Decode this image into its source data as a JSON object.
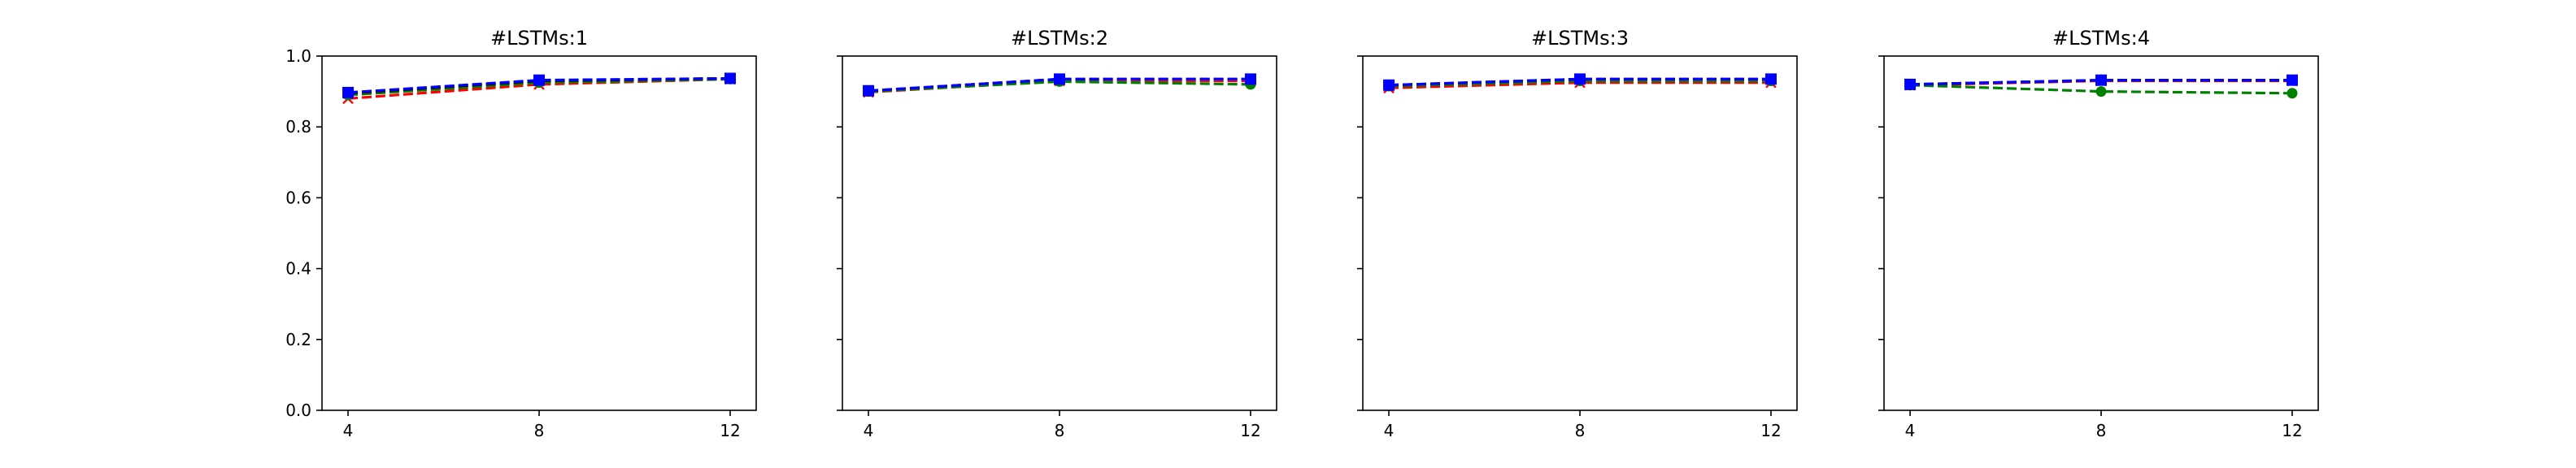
{
  "chart_data": [
    {
      "type": "line",
      "title": "#LSTMs:1",
      "x": [
        4,
        8,
        12
      ],
      "xticks": [
        "4",
        "8",
        "12"
      ],
      "yticks": [
        "0.0",
        "0.2",
        "0.4",
        "0.6",
        "0.8",
        "1.0"
      ],
      "ylim": [
        0.0,
        1.0
      ],
      "show_yticklabels": true,
      "series": [
        {
          "color": "#ff0000",
          "marker": "x",
          "linestyle": "dashed",
          "values": [
            0.88,
            0.92,
            0.935
          ]
        },
        {
          "color": "#008000",
          "marker": "o",
          "linestyle": "dashed",
          "values": [
            0.89,
            0.925,
            0.935
          ]
        },
        {
          "color": "#000000",
          "marker": "x",
          "linestyle": "dashed",
          "values": [
            0.895,
            0.93,
            0.937
          ]
        },
        {
          "color": "#0000ff",
          "marker": "s",
          "linestyle": "dashed",
          "values": [
            0.897,
            0.932,
            0.937
          ]
        }
      ]
    },
    {
      "type": "line",
      "title": "#LSTMs:2",
      "x": [
        4,
        8,
        12
      ],
      "xticks": [
        "4",
        "8",
        "12"
      ],
      "yticks": [
        "0.0",
        "0.2",
        "0.4",
        "0.6",
        "0.8",
        "1.0"
      ],
      "ylim": [
        0.0,
        1.0
      ],
      "show_yticklabels": false,
      "series": [
        {
          "color": "#ff0000",
          "marker": "x",
          "linestyle": "dashed",
          "values": [
            0.898,
            0.93,
            0.93
          ]
        },
        {
          "color": "#008000",
          "marker": "o",
          "linestyle": "dashed",
          "values": [
            0.9,
            0.928,
            0.92
          ]
        },
        {
          "color": "#000000",
          "marker": "x",
          "linestyle": "dashed",
          "values": [
            0.902,
            0.935,
            0.935
          ]
        },
        {
          "color": "#0000ff",
          "marker": "s",
          "linestyle": "dashed",
          "values": [
            0.902,
            0.935,
            0.935
          ]
        }
      ]
    },
    {
      "type": "line",
      "title": "#LSTMs:3",
      "x": [
        4,
        8,
        12
      ],
      "xticks": [
        "4",
        "8",
        "12"
      ],
      "yticks": [
        "0.0",
        "0.2",
        "0.4",
        "0.6",
        "0.8",
        "1.0"
      ],
      "ylim": [
        0.0,
        1.0
      ],
      "show_yticklabels": false,
      "series": [
        {
          "color": "#ff0000",
          "marker": "x",
          "linestyle": "dashed",
          "values": [
            0.91,
            0.925,
            0.925
          ]
        },
        {
          "color": "#008000",
          "marker": "o",
          "linestyle": "dashed",
          "values": [
            0.915,
            0.93,
            0.93
          ]
        },
        {
          "color": "#000000",
          "marker": "x",
          "linestyle": "dashed",
          "values": [
            0.918,
            0.935,
            0.935
          ]
        },
        {
          "color": "#0000ff",
          "marker": "s",
          "linestyle": "dashed",
          "values": [
            0.918,
            0.935,
            0.935
          ]
        }
      ]
    },
    {
      "type": "line",
      "title": "#LSTMs:4",
      "x": [
        4,
        8,
        12
      ],
      "xticks": [
        "4",
        "8",
        "12"
      ],
      "yticks": [
        "0.0",
        "0.2",
        "0.4",
        "0.6",
        "0.8",
        "1.0"
      ],
      "ylim": [
        0.0,
        1.0
      ],
      "show_yticklabels": false,
      "series": [
        {
          "color": "#ff0000",
          "marker": "x",
          "linestyle": "dashed",
          "values": [
            0.918,
            0.93,
            0.93
          ]
        },
        {
          "color": "#008000",
          "marker": "o",
          "linestyle": "dashed",
          "values": [
            0.918,
            0.9,
            0.895
          ]
        },
        {
          "color": "#000000",
          "marker": "x",
          "linestyle": "dashed",
          "values": [
            0.92,
            0.932,
            0.932
          ]
        },
        {
          "color": "#0000ff",
          "marker": "s",
          "linestyle": "dashed",
          "values": [
            0.92,
            0.932,
            0.932
          ]
        }
      ]
    }
  ]
}
